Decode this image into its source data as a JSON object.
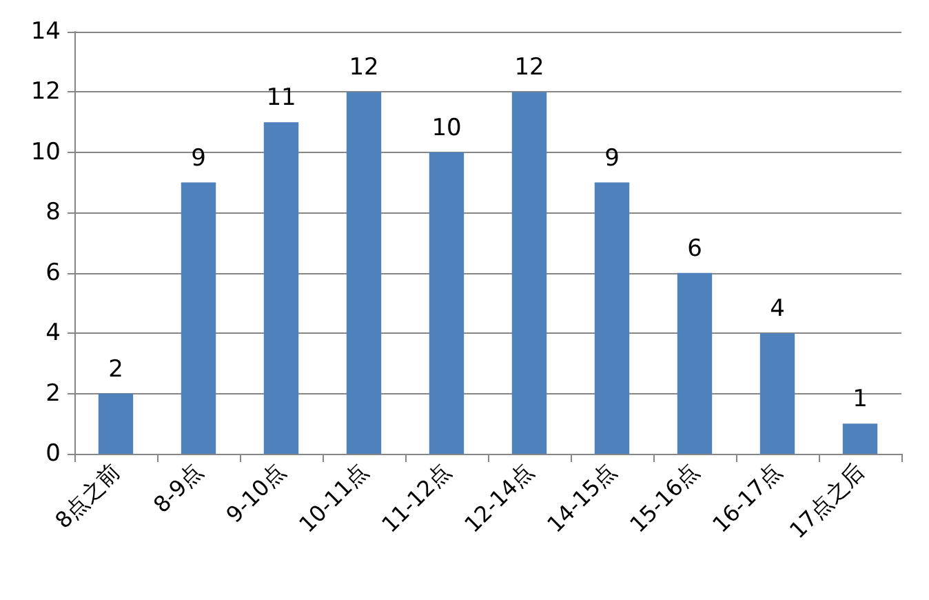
{
  "chart_data": {
    "type": "bar",
    "categories": [
      "8点之前",
      "8-9点",
      "9-10点",
      "10-11点",
      "11-12点",
      "12-14点",
      "14-15点",
      "15-16点",
      "16-17点",
      "17点之后"
    ],
    "values": [
      2,
      9,
      11,
      12,
      10,
      12,
      9,
      6,
      4,
      1
    ],
    "color": "#4f81bd",
    "ylim": [
      0,
      14
    ],
    "yticks": [
      0,
      2,
      4,
      6,
      8,
      10,
      12,
      14
    ],
    "grid": "y",
    "data_labels": true
  }
}
